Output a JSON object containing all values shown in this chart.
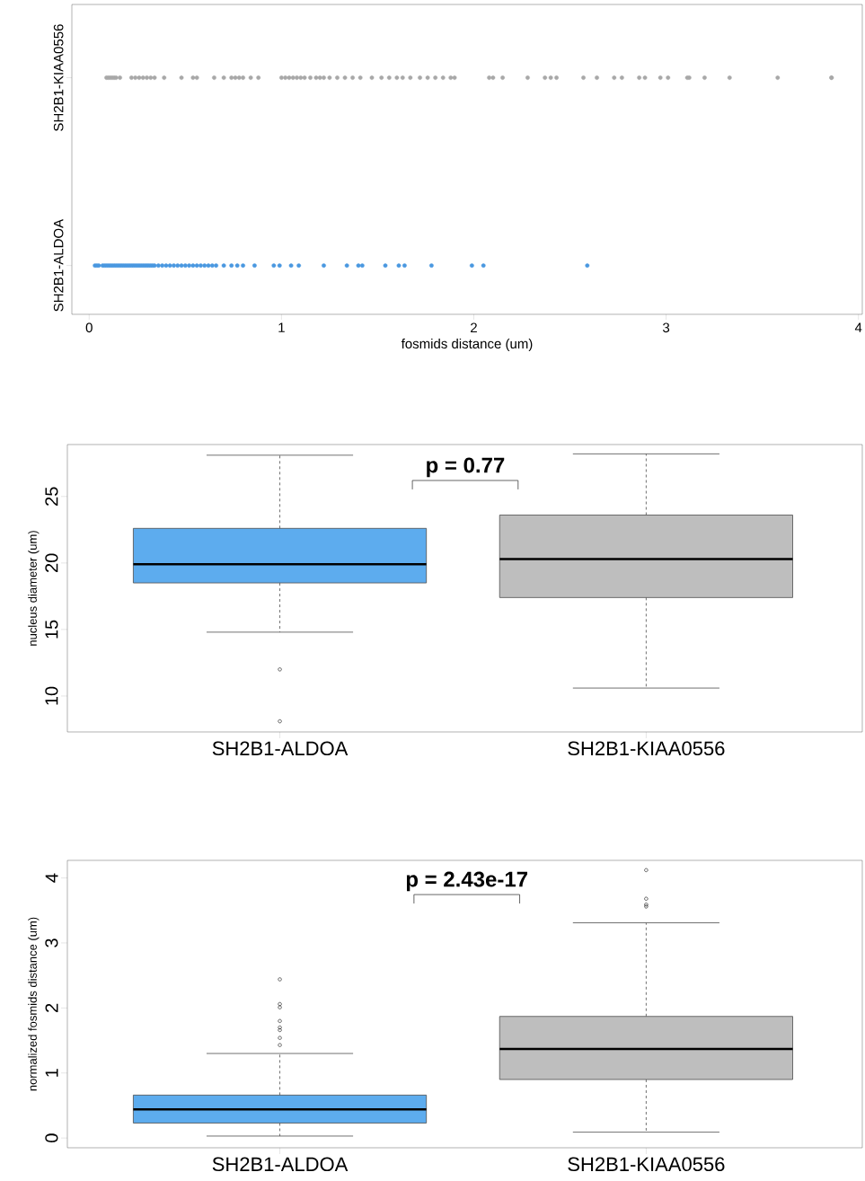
{
  "chart_data": [
    {
      "type": "scatter",
      "orientation": "horizontal",
      "categories": [
        "SH2B1-KIAA0556",
        "SH2B1-ALDOA"
      ],
      "xlabel": "fosmids distance (um)",
      "xlim": [
        -0.09,
        4.02
      ],
      "xticks": [
        0,
        1,
        2,
        3,
        4
      ],
      "series": [
        {
          "color": "#a8a8a8",
          "values": [
            0.09,
            0.1,
            0.11,
            0.12,
            0.13,
            0.14,
            0.16,
            0.22,
            0.24,
            0.26,
            0.28,
            0.3,
            0.32,
            0.34,
            0.39,
            0.48,
            0.54,
            0.56,
            0.65,
            0.7,
            0.74,
            0.76,
            0.78,
            0.8,
            0.84,
            0.88,
            1.0,
            1.02,
            1.04,
            1.06,
            1.08,
            1.1,
            1.12,
            1.15,
            1.18,
            1.2,
            1.22,
            1.25,
            1.29,
            1.33,
            1.37,
            1.41,
            1.47,
            1.52,
            1.56,
            1.6,
            1.63,
            1.67,
            1.72,
            1.76,
            1.8,
            1.84,
            1.88,
            1.9,
            2.08,
            2.1,
            2.15,
            2.28,
            2.37,
            2.4,
            2.43,
            2.57,
            2.64,
            2.73,
            2.77,
            2.86,
            2.89,
            2.97,
            3.01,
            3.11,
            3.12,
            3.2,
            3.33,
            3.58,
            3.86,
            3.86
          ],
          "x": [
            "SH2B1-KIAA0556",
            "SH2B1-KIAA0556",
            "SH2B1-KIAA0556",
            "SH2B1-KIAA0556",
            "SH2B1-KIAA0556",
            "SH2B1-KIAA0556",
            "SH2B1-KIAA0556",
            "SH2B1-KIAA0556",
            "SH2B1-KIAA0556",
            "SH2B1-KIAA0556",
            "SH2B1-KIAA0556",
            "SH2B1-KIAA0556",
            "SH2B1-KIAA0556",
            "SH2B1-KIAA0556",
            "SH2B1-KIAA0556",
            "SH2B1-KIAA0556",
            "SH2B1-KIAA0556",
            "SH2B1-KIAA0556",
            "SH2B1-KIAA0556",
            "SH2B1-KIAA0556",
            "SH2B1-KIAA0556",
            "SH2B1-KIAA0556",
            "SH2B1-KIAA0556",
            "SH2B1-KIAA0556",
            "SH2B1-KIAA0556",
            "SH2B1-KIAA0556",
            "SH2B1-KIAA0556",
            "SH2B1-KIAA0556",
            "SH2B1-KIAA0556",
            "SH2B1-KIAA0556",
            "SH2B1-KIAA0556",
            "SH2B1-KIAA0556",
            "SH2B1-KIAA0556",
            "SH2B1-KIAA0556",
            "SH2B1-KIAA0556",
            "SH2B1-KIAA0556",
            "SH2B1-KIAA0556",
            "SH2B1-KIAA0556",
            "SH2B1-KIAA0556",
            "SH2B1-KIAA0556",
            "SH2B1-KIAA0556",
            "SH2B1-KIAA0556",
            "SH2B1-KIAA0556",
            "SH2B1-KIAA0556",
            "SH2B1-KIAA0556",
            "SH2B1-KIAA0556",
            "SH2B1-KIAA0556",
            "SH2B1-KIAA0556",
            "SH2B1-KIAA0556",
            "SH2B1-KIAA0556",
            "SH2B1-KIAA0556",
            "SH2B1-KIAA0556",
            "SH2B1-KIAA0556",
            "SH2B1-KIAA0556",
            "SH2B1-KIAA0556",
            "SH2B1-KIAA0556",
            "SH2B1-KIAA0556",
            "SH2B1-KIAA0556",
            "SH2B1-KIAA0556",
            "SH2B1-KIAA0556",
            "SH2B1-KIAA0556",
            "SH2B1-KIAA0556",
            "SH2B1-KIAA0556",
            "SH2B1-KIAA0556",
            "SH2B1-KIAA0556",
            "SH2B1-KIAA0556",
            "SH2B1-KIAA0556",
            "SH2B1-KIAA0556",
            "SH2B1-KIAA0556",
            "SH2B1-KIAA0556",
            "SH2B1-KIAA0556",
            "SH2B1-KIAA0556",
            "SH2B1-KIAA0556",
            "SH2B1-KIAA0556",
            "SH2B1-KIAA0556",
            "SH2B1-KIAA0556"
          ]
        },
        {
          "color": "#4a98e0",
          "values": [
            0.03,
            0.04,
            0.05,
            0.07,
            0.08,
            0.09,
            0.1,
            0.11,
            0.12,
            0.13,
            0.14,
            0.15,
            0.16,
            0.17,
            0.18,
            0.19,
            0.2,
            0.21,
            0.22,
            0.23,
            0.24,
            0.25,
            0.26,
            0.27,
            0.28,
            0.29,
            0.3,
            0.31,
            0.32,
            0.33,
            0.34,
            0.36,
            0.38,
            0.4,
            0.42,
            0.44,
            0.46,
            0.48,
            0.5,
            0.52,
            0.54,
            0.56,
            0.58,
            0.6,
            0.62,
            0.64,
            0.66,
            0.7,
            0.74,
            0.77,
            0.8,
            0.86,
            0.96,
            0.99,
            1.05,
            1.09,
            1.22,
            1.34,
            1.4,
            1.42,
            1.54,
            1.61,
            1.64,
            1.78,
            1.99,
            2.05,
            2.59
          ],
          "x": [
            "SH2B1-ALDOA",
            "SH2B1-ALDOA",
            "SH2B1-ALDOA",
            "SH2B1-ALDOA",
            "SH2B1-ALDOA",
            "SH2B1-ALDOA",
            "SH2B1-ALDOA",
            "SH2B1-ALDOA",
            "SH2B1-ALDOA",
            "SH2B1-ALDOA",
            "SH2B1-ALDOA",
            "SH2B1-ALDOA",
            "SH2B1-ALDOA",
            "SH2B1-ALDOA",
            "SH2B1-ALDOA",
            "SH2B1-ALDOA",
            "SH2B1-ALDOA",
            "SH2B1-ALDOA",
            "SH2B1-ALDOA",
            "SH2B1-ALDOA",
            "SH2B1-ALDOA",
            "SH2B1-ALDOA",
            "SH2B1-ALDOA",
            "SH2B1-ALDOA",
            "SH2B1-ALDOA",
            "SH2B1-ALDOA",
            "SH2B1-ALDOA",
            "SH2B1-ALDOA",
            "SH2B1-ALDOA",
            "SH2B1-ALDOA",
            "SH2B1-ALDOA",
            "SH2B1-ALDOA",
            "SH2B1-ALDOA",
            "SH2B1-ALDOA",
            "SH2B1-ALDOA",
            "SH2B1-ALDOA",
            "SH2B1-ALDOA",
            "SH2B1-ALDOA",
            "SH2B1-ALDOA",
            "SH2B1-ALDOA",
            "SH2B1-ALDOA",
            "SH2B1-ALDOA",
            "SH2B1-ALDOA",
            "SH2B1-ALDOA",
            "SH2B1-ALDOA",
            "SH2B1-ALDOA",
            "SH2B1-ALDOA",
            "SH2B1-ALDOA",
            "SH2B1-ALDOA",
            "SH2B1-ALDOA",
            "SH2B1-ALDOA",
            "SH2B1-ALDOA",
            "SH2B1-ALDOA",
            "SH2B1-ALDOA",
            "SH2B1-ALDOA",
            "SH2B1-ALDOA",
            "SH2B1-ALDOA",
            "SH2B1-ALDOA",
            "SH2B1-ALDOA",
            "SH2B1-ALDOA",
            "SH2B1-ALDOA",
            "SH2B1-ALDOA",
            "SH2B1-ALDOA",
            "SH2B1-ALDOA",
            "SH2B1-ALDOA",
            "SH2B1-ALDOA",
            "SH2B1-ALDOA"
          ]
        }
      ]
    },
    {
      "type": "box",
      "categories": [
        "SH2B1-ALDOA",
        "SH2B1-KIAA0556"
      ],
      "ylabel": "nucleus diameter (um)",
      "ylim": [
        7.3,
        28.9
      ],
      "yticks": [
        10,
        15,
        20,
        25
      ],
      "colors": [
        "#5dacee",
        "#bebebe"
      ],
      "boxes": [
        {
          "low": 14.8,
          "q1": 18.5,
          "median": 19.9,
          "q3": 22.6,
          "high": 28.1,
          "outliers": [
            12.0,
            8.1
          ]
        },
        {
          "low": 10.6,
          "q1": 17.4,
          "median": 20.3,
          "q3": 23.6,
          "high": 28.2
        }
      ],
      "annotations": [
        "p = 0.77"
      ]
    },
    {
      "type": "box",
      "categories": [
        "SH2B1-ALDOA",
        "SH2B1-KIAA0556"
      ],
      "ylabel": "normalized fosmids distance (um)",
      "ylim": [
        -0.15,
        4.27
      ],
      "yticks": [
        0,
        1,
        2,
        3,
        4
      ],
      "colors": [
        "#5dacee",
        "#bebebe"
      ],
      "boxes": [
        {
          "low": 0.03,
          "q1": 0.23,
          "median": 0.44,
          "q3": 0.66,
          "high": 1.3,
          "outliers": [
            2.44,
            2.06,
            2.01,
            1.8,
            1.7,
            1.66,
            1.54,
            1.43
          ]
        },
        {
          "low": 0.09,
          "q1": 0.9,
          "median": 1.37,
          "q3": 1.87,
          "high": 3.31,
          "outliers": [
            4.12,
            3.68,
            3.59,
            3.56
          ]
        }
      ],
      "annotations": [
        "p = 2.43e-17"
      ]
    }
  ]
}
